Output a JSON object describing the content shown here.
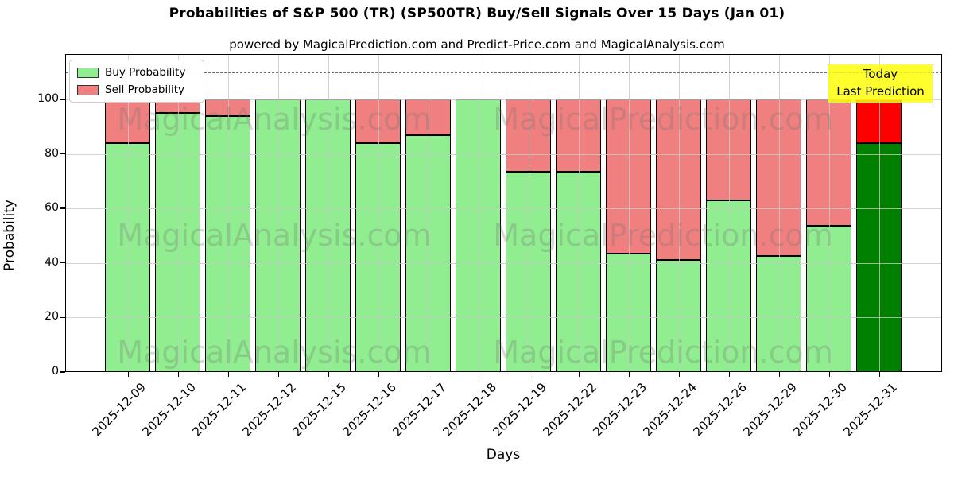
{
  "header": {
    "title": "Probabilities of S&P 500 (TR) (SP500TR) Buy/Sell Signals Over 15 Days (Jan 01)",
    "subtitle": "powered by MagicalPrediction.com and Predict-Price.com and MagicalAnalysis.com"
  },
  "chart_data": {
    "type": "bar",
    "stacked": true,
    "title": "Probabilities of S&P 500 (TR) (SP500TR) Buy/Sell Signals Over 15 Days (Jan 01)",
    "xlabel": "Days",
    "ylabel": "Probability",
    "ylim": [
      0,
      116.6
    ],
    "yticks": [
      0,
      20,
      40,
      60,
      80,
      100
    ],
    "grid": true,
    "dashed_line_y": 110,
    "legend_position": "upper left",
    "categories": [
      "2025-12-09",
      "2025-12-10",
      "2025-12-11",
      "2025-12-12",
      "2025-12-15",
      "2025-12-16",
      "2025-12-17",
      "2025-12-18",
      "2025-12-19",
      "2025-12-22",
      "2025-12-23",
      "2025-12-24",
      "2025-12-26",
      "2025-12-29",
      "2025-12-30",
      "2025-12-31"
    ],
    "series": [
      {
        "name": "Buy Probability",
        "color": "#90EE90",
        "last_bar_color": "#008000",
        "values": [
          84,
          95,
          94,
          100,
          100,
          84,
          87,
          100,
          73.5,
          73.5,
          43.5,
          41,
          63,
          42.5,
          53.5,
          84
        ]
      },
      {
        "name": "Sell Probability",
        "color": "#F08080",
        "last_bar_color": "#FF0000",
        "values": [
          16,
          5,
          6,
          0,
          0,
          16,
          13,
          0,
          26.5,
          26.5,
          56.5,
          59,
          37,
          57.5,
          46.5,
          16
        ]
      }
    ],
    "annotation": {
      "lines": [
        "Today",
        "Last Prediction"
      ],
      "bg_color": "#FFFF00"
    },
    "watermarks": [
      "MagicalAnalysis.com",
      "MagicalPrediction.com"
    ]
  },
  "colors": {
    "buy": "#90EE90",
    "sell": "#F08080",
    "last_buy": "#008000",
    "last_sell": "#FF0000",
    "grid": "#c8c8c8",
    "dashed_line": "#6e6e6e",
    "annotation_bg": "#FFFF00"
  }
}
